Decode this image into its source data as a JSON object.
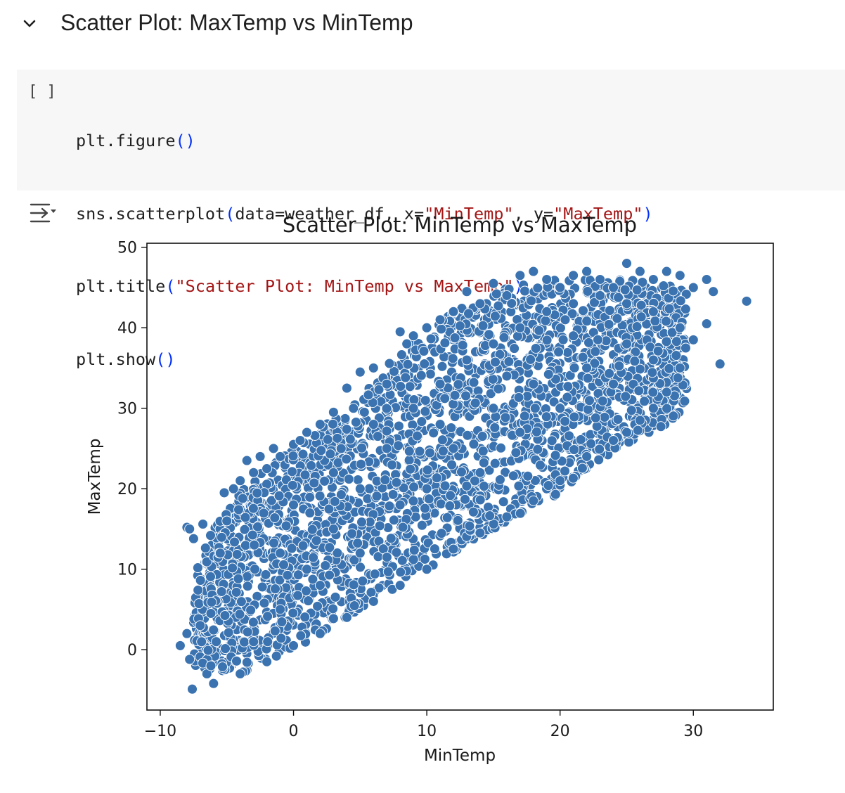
{
  "section": {
    "title": "Scatter Plot: MaxTemp vs MinTemp",
    "collapse_icon": "chevron-down-icon"
  },
  "cell": {
    "run_label": "[ ]",
    "code": {
      "line1": [
        "plt.figure",
        "(",
        ")"
      ],
      "line2": [
        "sns.scatterplot",
        "(",
        "data=weather_df, x=",
        "\"MinTemp\"",
        ", y=",
        "\"MaxTemp\"",
        ")"
      ],
      "line3": [
        "plt.title",
        "(",
        "\"Scatter Plot: MinTemp vs MaxTemp\"",
        ")"
      ],
      "line4": [
        "plt.show",
        "(",
        ")"
      ]
    }
  },
  "output": {
    "toggle_icon": "output-toggle-icon"
  },
  "colors": {
    "point_fill": "#3a73b0",
    "point_stroke": "#ffffff",
    "string": "#a31515",
    "paren": "#0431fa"
  },
  "chart_data": {
    "type": "scatter",
    "title": "Scatter Plot: MinTemp vs MaxTemp",
    "xlabel": "MinTemp",
    "ylabel": "MaxTemp",
    "xlim": [
      -11,
      36
    ],
    "ylim": [
      -7.5,
      50.5
    ],
    "xticks": [
      -10,
      0,
      10,
      20,
      30
    ],
    "xtick_labels": [
      "−10",
      "0",
      "10",
      "20",
      "30"
    ],
    "yticks": [
      0,
      10,
      20,
      30,
      40,
      50
    ],
    "ytick_labels": [
      "0",
      "10",
      "20",
      "30",
      "40",
      "50"
    ],
    "grid": false,
    "legend": "none",
    "points": [
      [
        -8.5,
        0.5
      ],
      [
        -8,
        15.2
      ],
      [
        -7.8,
        15
      ],
      [
        -7.6,
        -4.9
      ],
      [
        -7.8,
        -1.2
      ],
      [
        -8,
        2
      ],
      [
        -7.5,
        13.8
      ],
      [
        -7,
        3
      ],
      [
        -6.8,
        15.6
      ],
      [
        -6.5,
        -3
      ],
      [
        -6.2,
        -2
      ],
      [
        -6,
        -4.2
      ],
      [
        -5.8,
        1
      ],
      [
        -5.5,
        12
      ],
      [
        -5.2,
        19.5
      ],
      [
        -5,
        16
      ],
      [
        -4.5,
        20
      ],
      [
        -4,
        21
      ],
      [
        -3.5,
        23.5
      ],
      [
        -3,
        22
      ],
      [
        -2.5,
        24
      ],
      [
        -2,
        22.5
      ],
      [
        -1.5,
        25
      ],
      [
        -1,
        24
      ],
      [
        0,
        25.5
      ],
      [
        0.5,
        26
      ],
      [
        1,
        27
      ],
      [
        2,
        28
      ],
      [
        3,
        29.5
      ],
      [
        4,
        32.5
      ],
      [
        4.5,
        30
      ],
      [
        5,
        34.5
      ],
      [
        6,
        35
      ],
      [
        7,
        33
      ],
      [
        8,
        39.5
      ],
      [
        8.5,
        38
      ],
      [
        9,
        39
      ],
      [
        10,
        40
      ],
      [
        11,
        41
      ],
      [
        12,
        42
      ],
      [
        13,
        44.5
      ],
      [
        14,
        43
      ],
      [
        15,
        45.5
      ],
      [
        16,
        44
      ],
      [
        17,
        46.5
      ],
      [
        18,
        47
      ],
      [
        19,
        46
      ],
      [
        20,
        45
      ],
      [
        21,
        46.5
      ],
      [
        22,
        47
      ],
      [
        23,
        46
      ],
      [
        24,
        45
      ],
      [
        25,
        48
      ],
      [
        26,
        47
      ],
      [
        27,
        46
      ],
      [
        28,
        47
      ],
      [
        29,
        46.5
      ],
      [
        30,
        45
      ],
      [
        31,
        46
      ],
      [
        31.5,
        44.5
      ],
      [
        32,
        35.5
      ],
      [
        34,
        43.3
      ],
      [
        31,
        40.5
      ],
      [
        30,
        38.5
      ],
      [
        29,
        35
      ],
      [
        28,
        32
      ],
      [
        27,
        30
      ],
      [
        26,
        28.5
      ],
      [
        25,
        27
      ],
      [
        24,
        26
      ],
      [
        22,
        24
      ],
      [
        20,
        21
      ],
      [
        18,
        18.5
      ],
      [
        16,
        16.5
      ],
      [
        14,
        14.5
      ],
      [
        12,
        12.5
      ],
      [
        10,
        10
      ],
      [
        8,
        8
      ],
      [
        6,
        6
      ],
      [
        4,
        4
      ],
      [
        2,
        2
      ],
      [
        0,
        0.5
      ],
      [
        -2,
        -1.5
      ],
      [
        -4,
        -3
      ],
      [
        -3,
        1
      ],
      [
        -1,
        5
      ],
      [
        1,
        10
      ],
      [
        3,
        15
      ],
      [
        5,
        20
      ],
      [
        7,
        25
      ],
      [
        9,
        30
      ],
      [
        11,
        33
      ],
      [
        13,
        36
      ],
      [
        15,
        38
      ],
      [
        17,
        40
      ],
      [
        19,
        42
      ],
      [
        21,
        43
      ],
      [
        23,
        44
      ],
      [
        25,
        43
      ],
      [
        27,
        42
      ],
      [
        29,
        40
      ],
      [
        5,
        12
      ],
      [
        8,
        18
      ],
      [
        12,
        25
      ],
      [
        15,
        30
      ],
      [
        18,
        33
      ],
      [
        22,
        35
      ],
      [
        25,
        38
      ],
      [
        2,
        8
      ],
      [
        -1,
        12
      ],
      [
        0,
        18
      ],
      [
        10,
        20
      ],
      [
        14,
        22
      ],
      [
        17,
        27
      ],
      [
        20,
        30
      ],
      [
        24,
        33
      ],
      [
        27,
        36
      ],
      [
        6,
        28
      ],
      [
        3,
        22
      ],
      [
        11,
        28
      ],
      [
        16,
        34
      ],
      [
        21,
        39
      ]
    ],
    "density_band": {
      "description_free": true,
      "lower": [
        [
          -8,
          -2
        ],
        [
          -4,
          -3
        ],
        [
          0,
          0
        ],
        [
          5,
          5
        ],
        [
          10,
          10
        ],
        [
          15,
          15
        ],
        [
          20,
          19.5
        ],
        [
          25,
          25.5
        ],
        [
          28,
          28
        ],
        [
          30,
          31
        ]
      ],
      "upper": [
        [
          -8,
          8
        ],
        [
          -6,
          15
        ],
        [
          -4,
          20
        ],
        [
          0,
          25
        ],
        [
          4,
          30
        ],
        [
          8,
          37
        ],
        [
          12,
          42
        ],
        [
          16,
          45
        ],
        [
          20,
          46
        ],
        [
          25,
          46
        ],
        [
          30,
          45
        ]
      ]
    }
  }
}
